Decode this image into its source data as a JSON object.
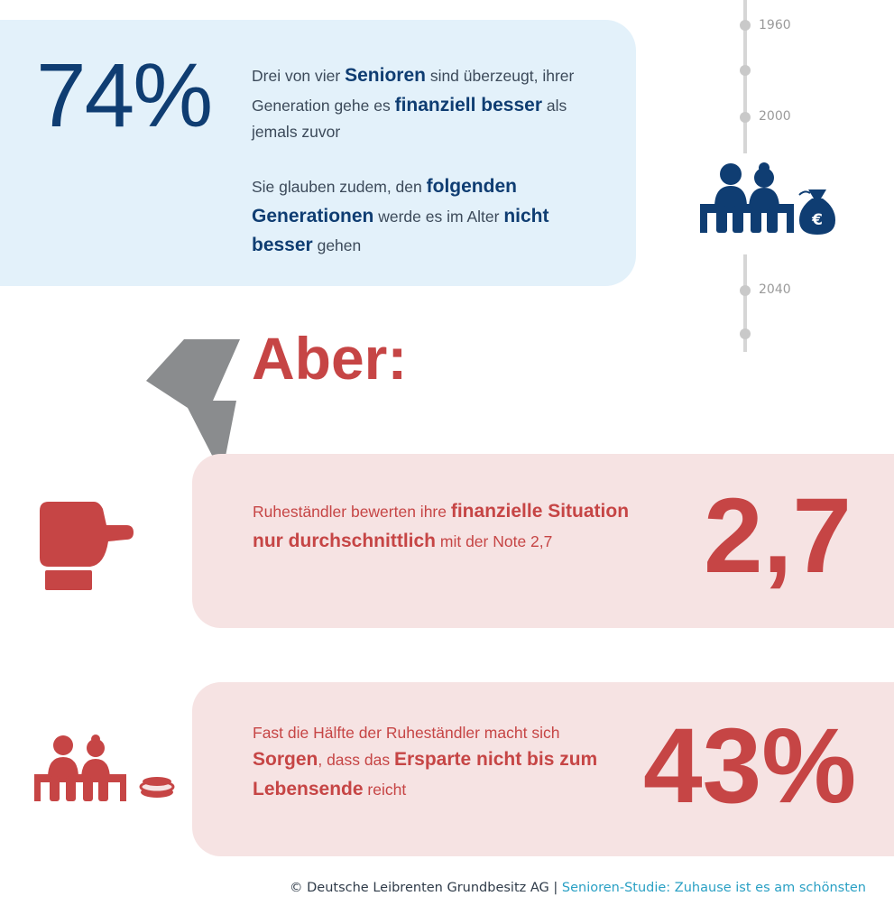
{
  "top": {
    "stat": "74%",
    "p1": [
      {
        "t": "Drei von vier ",
        "b": false
      },
      {
        "t": "Senioren",
        "b": true
      },
      {
        "t": " sind überzeugt, ihrer Generation gehe es ",
        "b": false
      },
      {
        "t": "finanziell besser",
        "b": true
      },
      {
        "t": " als jemals zuvor",
        "b": false
      }
    ],
    "p2": [
      {
        "t": "Sie glauben zudem, den ",
        "b": false
      },
      {
        "t": "folgenden Generationen",
        "b": true
      },
      {
        "t": " werde es im Alter ",
        "b": false
      },
      {
        "t": "nicht besser",
        "b": true
      },
      {
        "t": " gehen",
        "b": false
      }
    ]
  },
  "timeline": {
    "labels": [
      "1960",
      "2000",
      "2040"
    ]
  },
  "aber": "Aber:",
  "rating": {
    "stat": "2,7",
    "text": [
      {
        "t": "Ruheständler bewerten ihre ",
        "b": false
      },
      {
        "t": "finanzielle Situation nur durchschnittlich",
        "b": true
      },
      {
        "t": " mit der Note 2,7",
        "b": false
      }
    ]
  },
  "worry": {
    "stat": "43%",
    "text": [
      {
        "t": "Fast die Hälfte der Ruheständler macht sich ",
        "b": false
      },
      {
        "t": "Sorgen",
        "b": true
      },
      {
        "t": ", dass das ",
        "b": false
      },
      {
        "t": "Ersparte nicht bis zum Lebensende",
        "b": true
      },
      {
        "t": " reicht",
        "b": false
      }
    ]
  },
  "footer": {
    "copyright": "© Deutsche Leibrenten Grundbesitz AG | ",
    "study": "Senioren-Studie: Zuhause ist es am schönsten"
  },
  "colors": {
    "navy": "#0f3d72",
    "red": "#c64545",
    "light_blue_box": "#e3f1fa",
    "pink_box": "#f6e3e3",
    "bolt_gray": "#8a8c8e",
    "teal": "#2aa0c4"
  },
  "icons": [
    "seniors-money-bag-icon",
    "lightning-bolt-icon",
    "thumb-sideways-icon",
    "seniors-coins-icon",
    "euro-icon"
  ]
}
